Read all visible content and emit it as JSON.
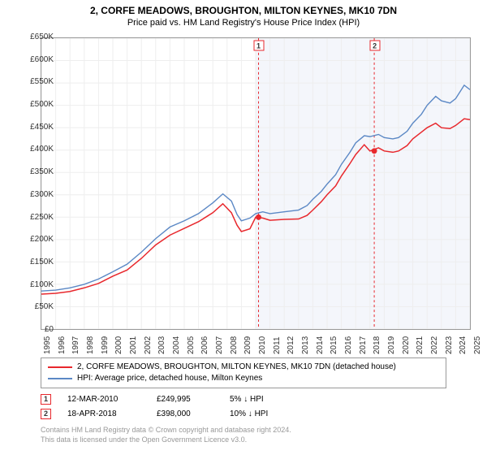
{
  "title": "2, CORFE MEADOWS, BROUGHTON, MILTON KEYNES, MK10 7DN",
  "subtitle": "Price paid vs. HM Land Registry's House Price Index (HPI)",
  "chart": {
    "type": "line",
    "background_color": "#ffffff",
    "grid_color": "#eeeeee",
    "axis_color": "#999999",
    "shade_color": "#f4f6fb",
    "shade_start_year": 2010,
    "ylim": [
      0,
      650000
    ],
    "ytick_step": 50000,
    "ytick_labels": [
      "£0",
      "£50K",
      "£100K",
      "£150K",
      "£200K",
      "£250K",
      "£300K",
      "£350K",
      "£400K",
      "£450K",
      "£500K",
      "£550K",
      "£600K",
      "£650K"
    ],
    "xlim": [
      1995,
      2025
    ],
    "xtick_years": [
      1995,
      1996,
      1997,
      1998,
      1999,
      2000,
      2001,
      2002,
      2003,
      2004,
      2005,
      2006,
      2007,
      2008,
      2009,
      2010,
      2011,
      2012,
      2013,
      2014,
      2015,
      2016,
      2017,
      2018,
      2019,
      2020,
      2021,
      2022,
      2023,
      2024,
      2025
    ],
    "series": [
      {
        "name": "property",
        "label": "2, CORFE MEADOWS, BROUGHTON, MILTON KEYNES, MK10 7DN (detached house)",
        "color": "#e8282d",
        "width": 1.5,
        "data": [
          [
            1995,
            78000
          ],
          [
            1996,
            80000
          ],
          [
            1997,
            84000
          ],
          [
            1998,
            92000
          ],
          [
            1999,
            102000
          ],
          [
            2000,
            118000
          ],
          [
            2001,
            132000
          ],
          [
            2002,
            158000
          ],
          [
            2003,
            188000
          ],
          [
            2004,
            210000
          ],
          [
            2005,
            225000
          ],
          [
            2006,
            240000
          ],
          [
            2007,
            260000
          ],
          [
            2007.7,
            280000
          ],
          [
            2008.3,
            260000
          ],
          [
            2008.7,
            232000
          ],
          [
            2009,
            218000
          ],
          [
            2009.6,
            224000
          ],
          [
            2010,
            249995
          ],
          [
            2010.5,
            248000
          ],
          [
            2011,
            243000
          ],
          [
            2012,
            245000
          ],
          [
            2013,
            246000
          ],
          [
            2013.6,
            254000
          ],
          [
            2014,
            266000
          ],
          [
            2014.6,
            285000
          ],
          [
            2015,
            300000
          ],
          [
            2015.6,
            320000
          ],
          [
            2016,
            342000
          ],
          [
            2016.6,
            370000
          ],
          [
            2017,
            390000
          ],
          [
            2017.6,
            412000
          ],
          [
            2018,
            398000
          ],
          [
            2018.6,
            405000
          ],
          [
            2019,
            398000
          ],
          [
            2019.6,
            395000
          ],
          [
            2020,
            398000
          ],
          [
            2020.6,
            410000
          ],
          [
            2021,
            425000
          ],
          [
            2021.6,
            440000
          ],
          [
            2022,
            450000
          ],
          [
            2022.6,
            460000
          ],
          [
            2023,
            450000
          ],
          [
            2023.6,
            448000
          ],
          [
            2024,
            455000
          ],
          [
            2024.6,
            470000
          ],
          [
            2025,
            468000
          ]
        ]
      },
      {
        "name": "hpi",
        "label": "HPI: Average price, detached house, Milton Keynes",
        "color": "#5b88c5",
        "width": 1.4,
        "data": [
          [
            1995,
            85000
          ],
          [
            1996,
            87000
          ],
          [
            1997,
            92000
          ],
          [
            1998,
            100000
          ],
          [
            1999,
            112000
          ],
          [
            2000,
            128000
          ],
          [
            2001,
            145000
          ],
          [
            2002,
            172000
          ],
          [
            2003,
            202000
          ],
          [
            2004,
            228000
          ],
          [
            2005,
            242000
          ],
          [
            2006,
            258000
          ],
          [
            2007,
            282000
          ],
          [
            2007.7,
            302000
          ],
          [
            2008.3,
            286000
          ],
          [
            2008.7,
            256000
          ],
          [
            2009,
            242000
          ],
          [
            2009.6,
            248000
          ],
          [
            2010,
            258000
          ],
          [
            2010.5,
            262000
          ],
          [
            2011,
            258000
          ],
          [
            2012,
            262000
          ],
          [
            2013,
            266000
          ],
          [
            2013.6,
            276000
          ],
          [
            2014,
            290000
          ],
          [
            2014.6,
            308000
          ],
          [
            2015,
            324000
          ],
          [
            2015.6,
            345000
          ],
          [
            2016,
            368000
          ],
          [
            2016.6,
            395000
          ],
          [
            2017,
            416000
          ],
          [
            2017.6,
            432000
          ],
          [
            2018,
            430000
          ],
          [
            2018.6,
            435000
          ],
          [
            2019,
            428000
          ],
          [
            2019.6,
            425000
          ],
          [
            2020,
            428000
          ],
          [
            2020.6,
            442000
          ],
          [
            2021,
            460000
          ],
          [
            2021.6,
            480000
          ],
          [
            2022,
            500000
          ],
          [
            2022.6,
            520000
          ],
          [
            2023,
            510000
          ],
          [
            2023.6,
            505000
          ],
          [
            2024,
            515000
          ],
          [
            2024.6,
            545000
          ],
          [
            2025,
            535000
          ]
        ]
      }
    ],
    "event_markers": [
      {
        "id": "1",
        "year": 2010.2,
        "value": 249995,
        "color": "#e8282d",
        "label_y": 72
      },
      {
        "id": "2",
        "year": 2018.3,
        "value": 398000,
        "color": "#e8282d",
        "label_y": 72
      }
    ],
    "event_dots": [
      {
        "year": 2010.2,
        "value": 249995,
        "color": "#e8282d"
      },
      {
        "year": 2018.3,
        "value": 398000,
        "color": "#e8282d"
      }
    ]
  },
  "legend": [
    {
      "color": "#e8282d",
      "label": "2, CORFE MEADOWS, BROUGHTON, MILTON KEYNES, MK10 7DN (detached house)"
    },
    {
      "color": "#5b88c5",
      "label": "HPI: Average price, detached house, Milton Keynes"
    }
  ],
  "events": [
    {
      "id": "1",
      "color": "#e8282d",
      "date": "12-MAR-2010",
      "price": "£249,995",
      "delta": "5% ↓ HPI"
    },
    {
      "id": "2",
      "color": "#e8282d",
      "date": "18-APR-2018",
      "price": "£398,000",
      "delta": "10% ↓ HPI"
    }
  ],
  "footer": {
    "line1": "Contains HM Land Registry data © Crown copyright and database right 2024.",
    "line2": "This data is licensed under the Open Government Licence v3.0."
  }
}
